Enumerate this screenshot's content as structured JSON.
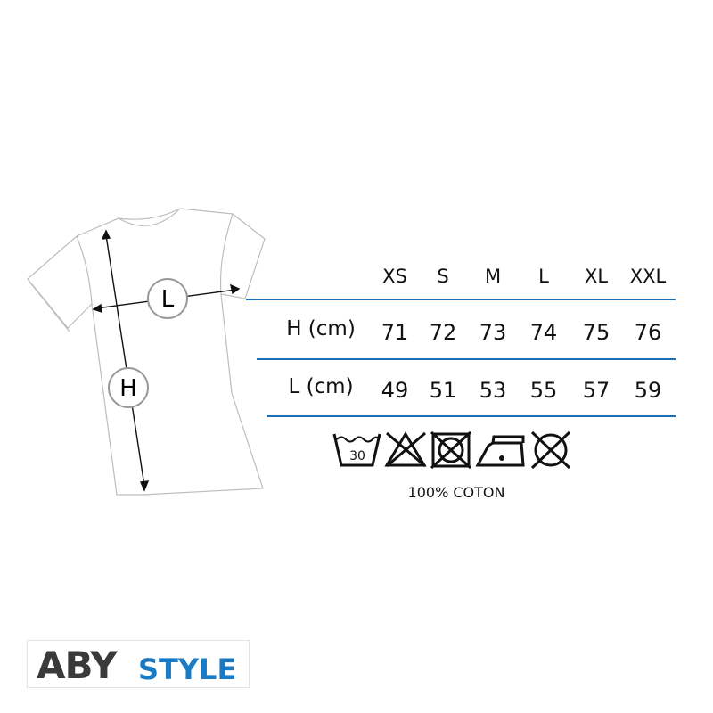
{
  "diagram": {
    "width_marker": "L",
    "height_marker": "H"
  },
  "table": {
    "columns": [
      "XS",
      "S",
      "M",
      "L",
      "XL",
      "XXL"
    ],
    "rows": [
      {
        "label": "H (cm)",
        "values": [
          "71",
          "72",
          "73",
          "74",
          "75",
          "76"
        ]
      },
      {
        "label": "L (cm)",
        "values": [
          "49",
          "51",
          "53",
          "55",
          "57",
          "59"
        ]
      }
    ],
    "line_color": "#1b6fb5"
  },
  "care": {
    "icons": [
      "wash-30-icon",
      "no-bleach-icon",
      "no-tumble-dry-icon",
      "iron-low-icon",
      "no-dry-clean-icon"
    ],
    "wash_temp": "30",
    "fabric": "100% COTON"
  },
  "logo": {
    "part1": "ABY",
    "part2": "STYLE",
    "color1": "#3a3a3c",
    "color2": "#1a7bc4"
  }
}
